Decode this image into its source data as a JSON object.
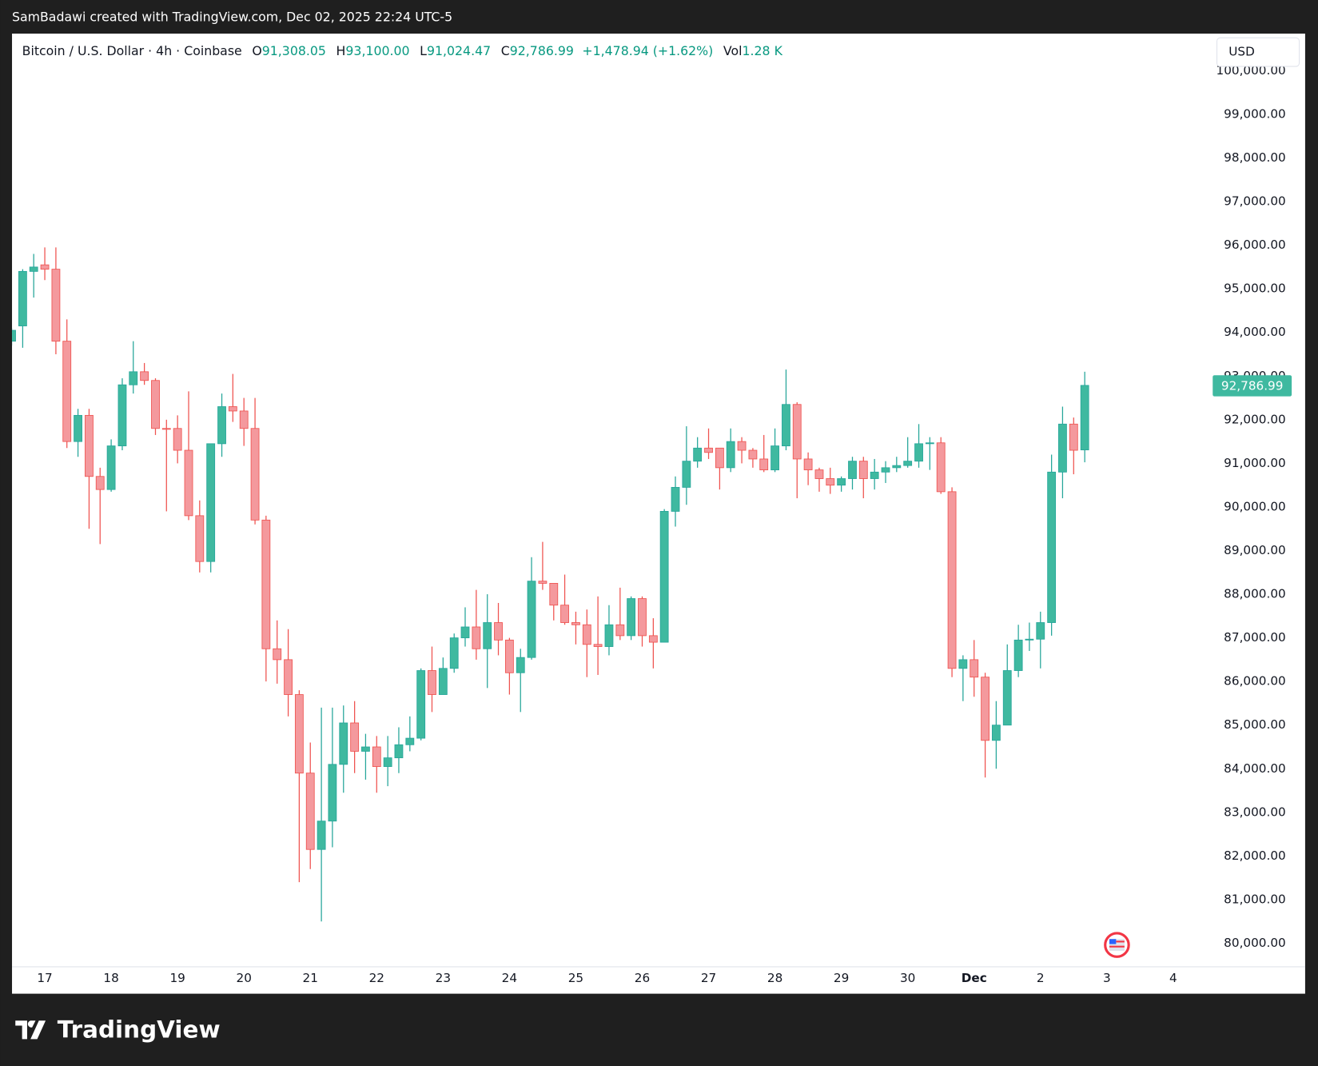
{
  "page": {
    "credit": "SamBadawi created with TradingView.com, Dec 02, 2025 22:24 UTC-5",
    "brand": "TradingView",
    "currency_button": "USD"
  },
  "chart_data": {
    "type": "candlestick",
    "title": "Bitcoin / U.S. Dollar · 4h · Coinbase",
    "ohlc_legend": [
      {
        "key": "O",
        "value": "91,308.05"
      },
      {
        "key": "H",
        "value": "93,100.00"
      },
      {
        "key": "L",
        "value": "91,024.47"
      },
      {
        "key": "C",
        "value": "92,786.99"
      }
    ],
    "change": "+1,478.94 (+1.62%)",
    "volume": {
      "key": "Vol",
      "value": "1.28 K"
    },
    "last_price_label": "92,786.99",
    "up_color": "#3fb9a0",
    "down_color": "#f4999d",
    "grid": false,
    "x": [
      16.5,
      16.667,
      16.833,
      17,
      17.167,
      17.333,
      17.5,
      17.667,
      17.833,
      18,
      18.167,
      18.333,
      18.5,
      18.667,
      18.833,
      19,
      19.167,
      19.333,
      19.5,
      19.667,
      19.833,
      20,
      20.167,
      20.333,
      20.5,
      20.667,
      20.833,
      21,
      21.167,
      21.333,
      21.5,
      21.667,
      21.833,
      22,
      22.167,
      22.333,
      22.5,
      22.667,
      22.833,
      23,
      23.167,
      23.333,
      23.5,
      23.667,
      23.833,
      24,
      24.167,
      24.333,
      24.5,
      24.667,
      24.833,
      25,
      25.167,
      25.333,
      25.5,
      25.667,
      25.833,
      26,
      26.167,
      26.333,
      26.5,
      26.667,
      26.833,
      27,
      27.167,
      27.333,
      27.5,
      27.667,
      27.833,
      28,
      28.167,
      28.333,
      28.5,
      28.667,
      28.833,
      29,
      29.167,
      29.333,
      29.5,
      29.667,
      29.833,
      30,
      30.167,
      30.333,
      30.5,
      30.667,
      30.833,
      31,
      31.167,
      31.333,
      31.5,
      31.667,
      31.833,
      32,
      32.167,
      32.333,
      32.5,
      32.667
    ],
    "open": [
      93800,
      94150,
      95400,
      95550,
      95450,
      93800,
      91500,
      92100,
      90700,
      90400,
      91400,
      92800,
      93100,
      92900,
      91800,
      91800,
      91300,
      89800,
      88750,
      91450,
      92300,
      92200,
      91800,
      89700,
      86750,
      86500,
      85700,
      83900,
      82150,
      82800,
      84100,
      85050,
      84400,
      84500,
      84050,
      84250,
      84550,
      84700,
      86250,
      85700,
      86300,
      87000,
      87250,
      86750,
      87350,
      86950,
      86200,
      86550,
      88300,
      88250,
      87750,
      87350,
      87300,
      86850,
      86800,
      87300,
      87050,
      87900,
      87050,
      86900,
      89900,
      90450,
      91050,
      91350,
      91350,
      90900,
      91500,
      91300,
      91100,
      90850,
      91400,
      92350,
      91100,
      90850,
      90650,
      90500,
      90650,
      91050,
      90650,
      90800,
      90900,
      90950,
      91050,
      91450,
      91470,
      90350,
      86300,
      86500,
      86100,
      84650,
      85000,
      86250,
      86950,
      86970,
      87350,
      90800,
      91900,
      91308.05
    ],
    "high": [
      94100,
      95450,
      95800,
      95950,
      95950,
      94300,
      92250,
      92250,
      90900,
      91550,
      92950,
      93800,
      93300,
      92950,
      92000,
      92100,
      92650,
      90150,
      91450,
      92600,
      93050,
      92500,
      92500,
      89800,
      87400,
      87200,
      85800,
      84600,
      85400,
      85400,
      85450,
      85550,
      84800,
      84750,
      84750,
      84950,
      85200,
      86300,
      86800,
      86550,
      87100,
      87700,
      88100,
      88000,
      87800,
      87000,
      86750,
      88850,
      89200,
      88250,
      88450,
      87600,
      87650,
      87950,
      87750,
      88150,
      87950,
      87950,
      87450,
      89950,
      90700,
      91850,
      91600,
      91800,
      91350,
      91800,
      91600,
      91350,
      91650,
      91800,
      93150,
      92400,
      91250,
      90900,
      90900,
      90700,
      91150,
      91150,
      91100,
      91050,
      91150,
      91600,
      91900,
      91600,
      91600,
      90450,
      86600,
      86950,
      86200,
      85550,
      86850,
      87300,
      87350,
      87600,
      91200,
      92300,
      92050,
      93100
    ],
    "low": [
      93700,
      93650,
      94800,
      95200,
      93500,
      91350,
      91150,
      89500,
      89150,
      90350,
      91300,
      92600,
      92800,
      91650,
      89900,
      91000,
      89700,
      88500,
      88500,
      91150,
      91950,
      91400,
      89600,
      86000,
      85950,
      85200,
      81400,
      81700,
      80500,
      82200,
      83450,
      83900,
      83750,
      83450,
      83600,
      83900,
      84400,
      84650,
      85300,
      85700,
      86200,
      86800,
      86500,
      85850,
      86600,
      85700,
      85300,
      86500,
      88100,
      87400,
      87300,
      86850,
      86100,
      86150,
      86600,
      86950,
      86950,
      86800,
      86300,
      86900,
      89550,
      90050,
      90900,
      91100,
      90400,
      90800,
      91000,
      90900,
      90800,
      90800,
      91300,
      90200,
      90500,
      90350,
      90300,
      90350,
      90400,
      90200,
      90400,
      90550,
      90800,
      90900,
      90900,
      90850,
      90300,
      86100,
      85550,
      85650,
      83800,
      84000,
      85000,
      86100,
      86700,
      86300,
      87050,
      90200,
      90750,
      91024.47
    ],
    "close": [
      94050,
      95400,
      95500,
      95450,
      93800,
      91500,
      92100,
      90700,
      90400,
      91400,
      92800,
      93100,
      92900,
      91800,
      91780,
      91300,
      89800,
      88750,
      91450,
      92300,
      92200,
      91800,
      89700,
      86750,
      86500,
      85700,
      83900,
      82150,
      82800,
      84100,
      85050,
      84400,
      84500,
      84050,
      84250,
      84550,
      84700,
      86250,
      85700,
      86300,
      87000,
      87250,
      86750,
      87350,
      86950,
      86200,
      86550,
      88300,
      88250,
      87750,
      87350,
      87300,
      86850,
      86800,
      87300,
      87050,
      87900,
      87050,
      86900,
      89900,
      90450,
      91050,
      91350,
      91250,
      90900,
      91500,
      91300,
      91100,
      90850,
      91400,
      92350,
      91100,
      90850,
      90650,
      90500,
      90650,
      91050,
      90650,
      90800,
      90900,
      90950,
      91050,
      91450,
      91470,
      90350,
      86300,
      86500,
      86100,
      84650,
      85000,
      86250,
      86950,
      86970,
      87350,
      90800,
      91900,
      91300,
      92786.99
    ],
    "xlim": [
      16.506,
      34.557
    ],
    "xticks": [
      17,
      18,
      19,
      20,
      21,
      22,
      23,
      24,
      25,
      26,
      27,
      28,
      29,
      30,
      {
        "value": 31,
        "label": "Dec"
      },
      {
        "value": 32,
        "label": "2"
      },
      {
        "value": 33,
        "label": "3"
      },
      {
        "value": 34,
        "label": "4"
      }
    ],
    "ylim": [
      79460,
      100850
    ],
    "yticks": [
      {
        "value": 80000,
        "label": "80,000.00"
      },
      {
        "value": 81000,
        "label": "81,000.00"
      },
      {
        "value": 82000,
        "label": "82,000.00"
      },
      {
        "value": 83000,
        "label": "83,000.00"
      },
      {
        "value": 84000,
        "label": "84,000.00"
      },
      {
        "value": 85000,
        "label": "85,000.00"
      },
      {
        "value": 86000,
        "label": "86,000.00"
      },
      {
        "value": 87000,
        "label": "87,000.00"
      },
      {
        "value": 88000,
        "label": "88,000.00"
      },
      {
        "value": 89000,
        "label": "89,000.00"
      },
      {
        "value": 90000,
        "label": "90,000.00"
      },
      {
        "value": 91000,
        "label": "91,000.00"
      },
      {
        "value": 92000,
        "label": "92,000.00"
      },
      {
        "value": 93000,
        "label": "93,000.00"
      },
      {
        "value": 94000,
        "label": "94,000.00"
      },
      {
        "value": 95000,
        "label": "95,000.00"
      },
      {
        "value": 96000,
        "label": "96,000.00"
      },
      {
        "value": 97000,
        "label": "97,000.00"
      },
      {
        "value": 98000,
        "label": "98,000.00"
      },
      {
        "value": 99000,
        "label": "99,000.00"
      },
      {
        "value": 100000,
        "label": "100,000.00"
      }
    ]
  }
}
